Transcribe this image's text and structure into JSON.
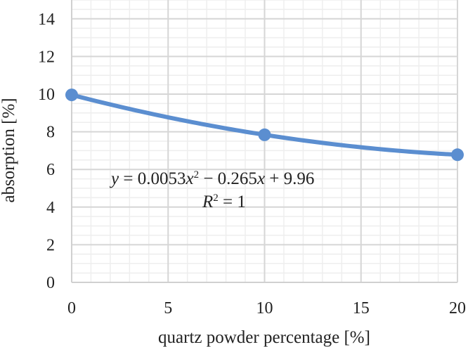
{
  "chart_data": {
    "type": "line",
    "title": "",
    "xlabel": "quartz powder percentage [%]",
    "ylabel": "absorption [%]",
    "x": [
      0,
      10,
      20
    ],
    "series": [
      {
        "name": "absorption",
        "values": [
          9.96,
          7.84,
          6.78
        ],
        "color": "#5b8ed0"
      }
    ],
    "xlim": [
      0,
      20
    ],
    "ylim": [
      0,
      15
    ],
    "xticks": [
      0,
      5,
      10,
      15,
      20
    ],
    "yticks": [
      0,
      2,
      4,
      6,
      8,
      10,
      12,
      14
    ],
    "grid": true,
    "legend": "none",
    "annotations": [
      {
        "text": "y = 0.0053x² − 0.265x + 9.96"
      },
      {
        "text": "R² = 1"
      }
    ],
    "trendline": {
      "type": "polynomial",
      "order": 2,
      "a": 0.0053,
      "b": -0.265,
      "c": 9.96,
      "r2": 1
    }
  },
  "labels": {
    "xlabel": "quartz powder percentage [%]",
    "ylabel": "absorption [%]",
    "equation_y": "y",
    "equation_rest": " = 0.0053",
    "equation_x1": "x",
    "equation_sq": "2",
    "equation_mid": " − 0.265",
    "equation_x2": "x",
    "equation_end": " + 9.96",
    "r2_R": "R",
    "r2_rest": " = 1",
    "r2_sq": "2"
  }
}
